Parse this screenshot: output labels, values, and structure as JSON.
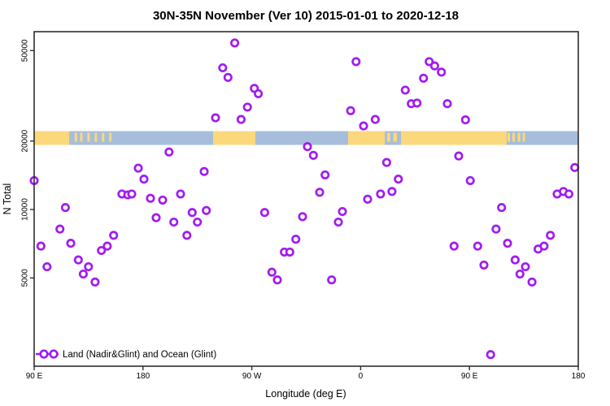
{
  "title": "30N-35N November (Ver 10)   2015-01-01 to 2020-12-18",
  "axes": {
    "x_label": "Longitude (deg E)",
    "y_label": "N Total"
  },
  "legend": {
    "label": "Land (Nadir&Glint) and Ocean (Glint)",
    "symbol": "line-with-two-open-circles"
  },
  "colors": {
    "point": "#A21CF0",
    "land": "#FBD87B",
    "ocean": "#A6BEDB",
    "axis": "#2E2E2E",
    "text": "#000000",
    "background": "#FFFFFF"
  },
  "chart_data": {
    "type": "scatter",
    "title": "30N-35N November (Ver 10)   2015-01-01 to 2020-12-18",
    "xlabel": "Longitude (deg E)",
    "ylabel": "N Total",
    "y_scale": "log10",
    "ylim": [
      2000,
      60000
    ],
    "x_axis_note": "axis spans 450 degrees eastward from 90E, wrapping 90E-180-90W-0-90E-180",
    "x_ticks": [
      {
        "t": 0,
        "label": "90 E"
      },
      {
        "t": 90,
        "label": "180"
      },
      {
        "t": 180,
        "label": "90 W"
      },
      {
        "t": 270,
        "label": "0"
      },
      {
        "t": 360,
        "label": "90 E"
      },
      {
        "t": 450,
        "label": "180"
      }
    ],
    "y_ticks": [
      {
        "n": 50000,
        "label": "50000"
      },
      {
        "n": 20000,
        "label": "20000"
      },
      {
        "n": 10000,
        "label": "10000"
      },
      {
        "n": 5000,
        "label": "5000"
      }
    ],
    "map_strip": {
      "description": "land/ocean map band for the 30N-35N latitude zone drawn across the plot at N ~20000",
      "n_center": 20000,
      "land_segments_t": [
        [
          0,
          29
        ],
        [
          148,
          183
        ],
        [
          259.7,
          290
        ],
        [
          303.4,
          390.8
        ]
      ],
      "island_segments_t": [
        [
          33.5,
          35.5
        ],
        [
          38,
          40
        ],
        [
          44,
          46
        ],
        [
          50,
          52
        ],
        [
          56,
          58
        ],
        [
          62,
          64
        ],
        [
          292,
          294.5
        ],
        [
          297,
          300
        ],
        [
          391.5,
          393.5
        ],
        [
          395.5,
          397.5
        ],
        [
          400,
          402
        ],
        [
          404,
          406
        ]
      ]
    },
    "points_t_n": [
      [
        0,
        13400
      ],
      [
        72.6,
        11700
      ],
      [
        77.4,
        11600
      ],
      [
        80.7,
        11700
      ],
      [
        86.1,
        15200
      ],
      [
        90.8,
        13600
      ],
      [
        96.2,
        11200
      ],
      [
        106.3,
        11000
      ],
      [
        111.5,
        17900
      ],
      [
        121.1,
        11700
      ],
      [
        140.6,
        14700
      ],
      [
        150.0,
        25300
      ],
      [
        25.8,
        10200
      ],
      [
        21.3,
        8200
      ],
      [
        5.6,
        6900
      ],
      [
        30.3,
        7100
      ],
      [
        10.6,
        5600
      ],
      [
        36.5,
        6000
      ],
      [
        44.9,
        5600
      ],
      [
        40.6,
        5200
      ],
      [
        50.4,
        4800
      ],
      [
        55.6,
        6600
      ],
      [
        60.5,
        6900
      ],
      [
        65.7,
        7700
      ],
      [
        100.9,
        9200
      ],
      [
        115.5,
        8800
      ],
      [
        130.7,
        9700
      ],
      [
        135.0,
        8800
      ],
      [
        142.4,
        9900
      ],
      [
        126.3,
        7700
      ],
      [
        165.9,
        54000
      ],
      [
        155.9,
        42000
      ],
      [
        160.3,
        38100
      ],
      [
        182.1,
        34100
      ],
      [
        185.4,
        32300
      ],
      [
        176.4,
        28200
      ],
      [
        171.1,
        24900
      ],
      [
        266.2,
        44700
      ],
      [
        261.7,
        27200
      ],
      [
        282.1,
        24900
      ],
      [
        272.4,
        23300
      ],
      [
        226.0,
        18900
      ],
      [
        230.9,
        17300
      ],
      [
        240.6,
        14200
      ],
      [
        236.1,
        11900
      ],
      [
        291.5,
        16100
      ],
      [
        301.2,
        13600
      ],
      [
        275.8,
        11100
      ],
      [
        286.5,
        11700
      ],
      [
        295.9,
        12000
      ],
      [
        190.6,
        9700
      ],
      [
        222.0,
        9300
      ],
      [
        254.9,
        9800
      ],
      [
        251.6,
        8800
      ],
      [
        216.4,
        7400
      ],
      [
        206.9,
        6500
      ],
      [
        211.4,
        6500
      ],
      [
        196.6,
        5300
      ],
      [
        201.1,
        4900
      ],
      [
        246.0,
        4900
      ],
      [
        326.7,
        44700
      ],
      [
        331.2,
        42800
      ],
      [
        336.8,
        40200
      ],
      [
        322.0,
        37800
      ],
      [
        306.9,
        33500
      ],
      [
        311.9,
        29200
      ],
      [
        316.6,
        29400
      ],
      [
        341.7,
        29200
      ],
      [
        356.7,
        24800
      ],
      [
        351.1,
        17200
      ],
      [
        360.7,
        13400
      ],
      [
        447.1,
        15300
      ],
      [
        432.5,
        11700
      ],
      [
        437.7,
        12000
      ],
      [
        442.2,
        11700
      ],
      [
        386.6,
        10200
      ],
      [
        382.0,
        8200
      ],
      [
        347.3,
        6900
      ],
      [
        366.8,
        6900
      ],
      [
        391.5,
        7100
      ],
      [
        426.9,
        7700
      ],
      [
        416.8,
        6700
      ],
      [
        421.7,
        6900
      ],
      [
        372.0,
        5700
      ],
      [
        397.8,
        6000
      ],
      [
        406.3,
        5600
      ],
      [
        401.8,
        5200
      ],
      [
        411.7,
        4800
      ],
      [
        377.5,
        2300
      ]
    ]
  }
}
